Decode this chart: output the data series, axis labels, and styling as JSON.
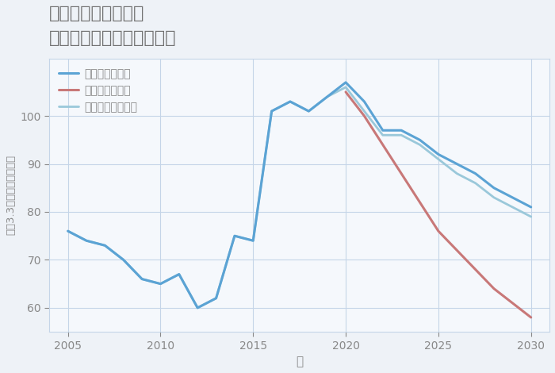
{
  "title": "千葉県成田市前林の\n中古マンションの価格推移",
  "xlabel": "年",
  "ylabel": "坪（3.3㎡）単価（万円）",
  "background_color": "#eef2f7",
  "plot_bg_color": "#f5f8fc",
  "grid_color": "#c5d5e8",
  "title_color": "#707070",
  "axis_color": "#888888",
  "tick_color": "#888888",
  "good_scenario": {
    "label": "グッドシナリオ",
    "color": "#5ba3d4",
    "linewidth": 2.2,
    "years": [
      2005,
      2006,
      2007,
      2008,
      2009,
      2010,
      2011,
      2012,
      2013,
      2014,
      2015,
      2016,
      2017,
      2018,
      2019,
      2020,
      2021,
      2022,
      2023,
      2024,
      2025,
      2026,
      2027,
      2028,
      2029,
      2030
    ],
    "values": [
      76,
      74,
      73,
      70,
      66,
      65,
      67,
      60,
      62,
      75,
      74,
      101,
      103,
      101,
      104,
      107,
      103,
      97,
      97,
      95,
      92,
      90,
      88,
      85,
      83,
      81
    ]
  },
  "bad_scenario": {
    "label": "バッドシナリオ",
    "color": "#c87878",
    "linewidth": 2.2,
    "years": [
      2020,
      2021,
      2022,
      2023,
      2024,
      2025,
      2026,
      2027,
      2028,
      2029,
      2030
    ],
    "values": [
      105,
      100,
      94,
      88,
      82,
      76,
      72,
      68,
      64,
      61,
      58
    ]
  },
  "normal_scenario": {
    "label": "ノーマルシナリオ",
    "color": "#9ac8da",
    "linewidth": 2.0,
    "years": [
      2005,
      2006,
      2007,
      2008,
      2009,
      2010,
      2011,
      2012,
      2013,
      2014,
      2015,
      2016,
      2017,
      2018,
      2019,
      2020,
      2021,
      2022,
      2023,
      2024,
      2025,
      2026,
      2027,
      2028,
      2029,
      2030
    ],
    "values": [
      76,
      74,
      73,
      70,
      66,
      65,
      67,
      60,
      62,
      75,
      74,
      101,
      103,
      101,
      104,
      106,
      101,
      96,
      96,
      94,
      91,
      88,
      86,
      83,
      81,
      79
    ]
  },
  "xlim": [
    2004,
    2031
  ],
  "ylim": [
    55,
    112
  ],
  "xticks": [
    2005,
    2010,
    2015,
    2020,
    2025,
    2030
  ],
  "yticks": [
    60,
    70,
    80,
    90,
    100
  ],
  "legend_order": [
    "good_scenario",
    "bad_scenario",
    "normal_scenario"
  ],
  "figsize": [
    7.0,
    4.7
  ],
  "dpi": 100
}
